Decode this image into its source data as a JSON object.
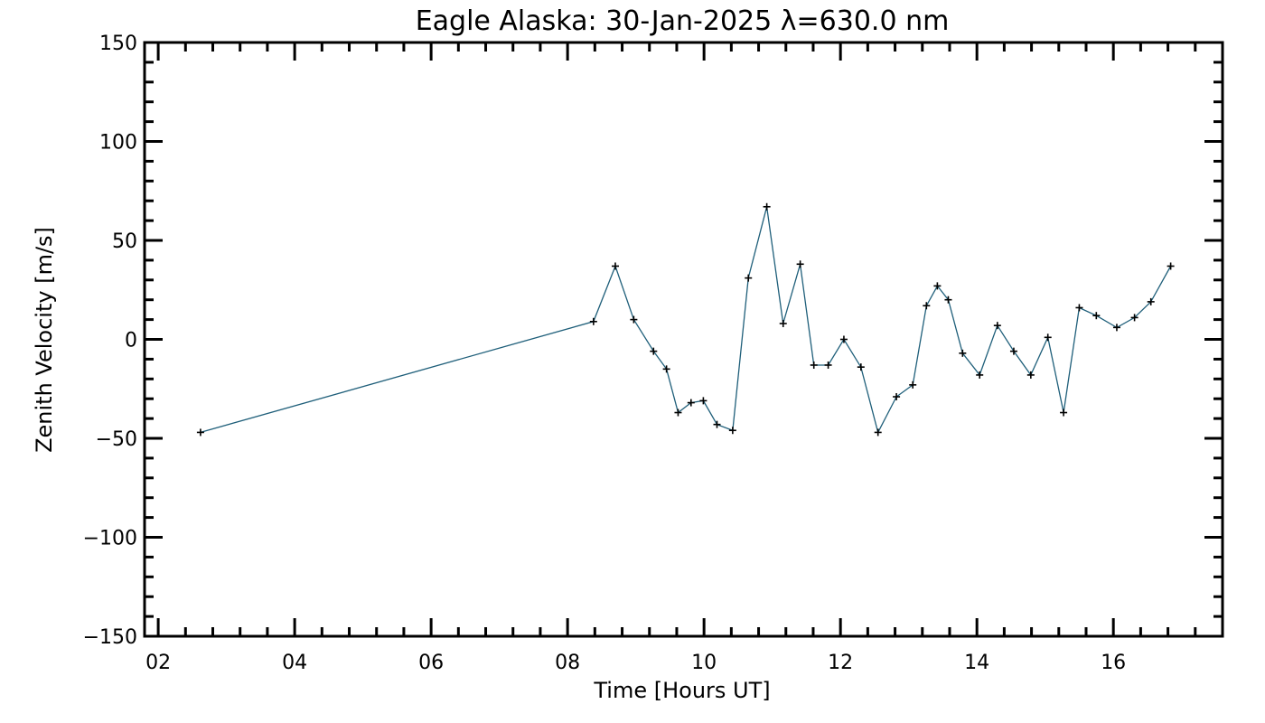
{
  "chart_data": {
    "type": "line",
    "title": "Eagle Alaska: 30-Jan-2025 λ=630.0 nm",
    "xlabel": "Time [Hours UT]",
    "ylabel": "Zenith Velocity [m/s]",
    "xlim": [
      1.8,
      17.6
    ],
    "ylim": [
      -150,
      150
    ],
    "x_ticks": [
      2,
      4,
      6,
      8,
      10,
      12,
      14,
      16
    ],
    "x_tick_labels": [
      "02",
      "04",
      "06",
      "08",
      "10",
      "12",
      "14",
      "16"
    ],
    "y_ticks": [
      -150,
      -100,
      -50,
      0,
      50,
      100,
      150
    ],
    "y_tick_labels": [
      "−150",
      "−100",
      "−50",
      "0",
      "50",
      "100",
      "150"
    ],
    "grid": false,
    "line_color": "#1f5f7a",
    "marker": "plus",
    "series": [
      {
        "x": [
          2.62,
          8.38,
          8.7,
          8.97,
          9.26,
          9.45,
          9.62,
          9.81,
          9.99,
          10.19,
          10.42,
          10.65,
          10.92,
          11.16,
          11.41,
          11.61,
          11.82,
          12.05,
          12.3,
          12.55,
          12.82,
          13.06,
          13.26,
          13.42,
          13.58,
          13.79,
          14.04,
          14.3,
          14.54,
          14.79,
          15.04,
          15.27,
          15.5,
          15.75,
          16.05,
          16.31,
          16.55,
          16.84
        ],
        "y": [
          -47,
          9,
          37,
          10,
          -6,
          -15,
          -37,
          -32,
          -31,
          -43,
          -46,
          31,
          67,
          8,
          38,
          -13,
          -13,
          0,
          -14,
          -47,
          -29,
          -23,
          17,
          27,
          20,
          -7,
          -18,
          7,
          -6,
          -18,
          1,
          -37,
          16,
          12,
          6,
          11,
          19,
          37
        ]
      }
    ]
  }
}
